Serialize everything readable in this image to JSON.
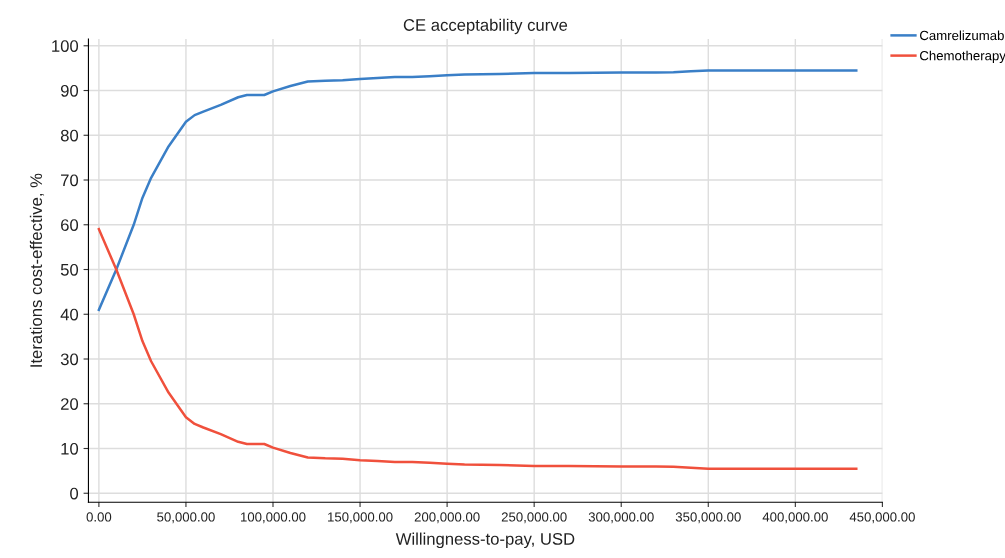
{
  "chart_data": {
    "type": "line",
    "title": "CE acceptability curve",
    "xlabel": "Willingness-to-pay, USD",
    "ylabel": "Iterations cost-effective, %",
    "x": [
      0,
      10000,
      20000,
      25000,
      30000,
      40000,
      50000,
      55000,
      60000,
      70000,
      80000,
      85000,
      95000,
      100000,
      110000,
      120000,
      130000,
      140000,
      150000,
      160000,
      170000,
      180000,
      190000,
      200000,
      210000,
      230000,
      250000,
      270000,
      300000,
      320000,
      330000,
      340000,
      350000,
      400000,
      435000
    ],
    "series": [
      {
        "name": "Camrelizumab",
        "color": "#3a7fc7",
        "values": [
          41,
          50,
          60,
          66,
          70.5,
          77.5,
          83,
          84.5,
          85.3,
          86.8,
          88.5,
          89,
          89,
          89.8,
          91,
          92,
          92.2,
          92.3,
          92.6,
          92.8,
          93,
          93,
          93.2,
          93.4,
          93.6,
          93.7,
          93.9,
          93.9,
          94,
          94,
          94.1,
          94.3,
          94.5,
          94.5,
          94.5
        ]
      },
      {
        "name": "Chemotherapy",
        "color": "#f0503c",
        "values": [
          59,
          50,
          40,
          34,
          29.5,
          22.5,
          17,
          15.5,
          14.7,
          13.2,
          11.5,
          11,
          11,
          10.2,
          9,
          8,
          7.8,
          7.7,
          7.4,
          7.2,
          7,
          7,
          6.8,
          6.6,
          6.4,
          6.3,
          6.1,
          6.1,
          6,
          6,
          5.9,
          5.7,
          5.5,
          5.5,
          5.5
        ]
      }
    ],
    "xlim": [
      -6000,
      450000
    ],
    "xticks": [
      {
        "value": 0,
        "label": "0.00"
      },
      {
        "value": 50000,
        "label": "50,000.00"
      },
      {
        "value": 100000,
        "label": "100,000.00"
      },
      {
        "value": 150000,
        "label": "150,000.00"
      },
      {
        "value": 200000,
        "label": "200,000.00"
      },
      {
        "value": 250000,
        "label": "250,000.00"
      },
      {
        "value": 300000,
        "label": "300,000.00"
      },
      {
        "value": 350000,
        "label": "350,000.00"
      },
      {
        "value": 400000,
        "label": "400,000.00"
      },
      {
        "value": 450000,
        "label": "450,000.00"
      }
    ],
    "ylim": [
      -2,
      101.5
    ],
    "yticks": [
      0,
      10,
      20,
      30,
      40,
      50,
      60,
      70,
      80,
      90,
      100
    ],
    "grid": true,
    "legend": "top right",
    "marker": "none",
    "line_style": "solid"
  }
}
